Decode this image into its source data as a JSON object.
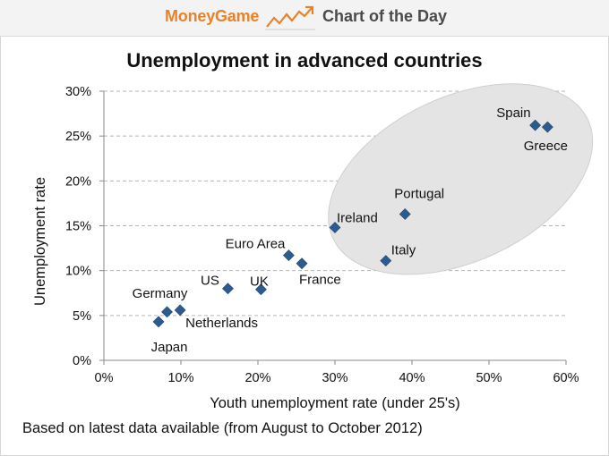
{
  "banner": {
    "brand": "MoneyGame",
    "icon": "rising-trend-chart-icon",
    "title": "Chart of the Day",
    "brand_color": "#e8822a"
  },
  "chart_data": {
    "type": "scatter",
    "title": "Unemployment in advanced countries",
    "xlabel": "Youth unemployment rate (under 25's)",
    "ylabel": "Unemployment rate",
    "xlim": [
      0,
      60
    ],
    "ylim": [
      0,
      30
    ],
    "xticks": [
      "0%",
      "10%",
      "20%",
      "30%",
      "40%",
      "50%",
      "60%"
    ],
    "yticks": [
      "0%",
      "5%",
      "10%",
      "15%",
      "20%",
      "25%",
      "30%"
    ],
    "grid": "horizontal dashed",
    "marker": "diamond",
    "marker_color": "#2e5b8e",
    "highlight_color": "#e4e4e4",
    "points": [
      {
        "label": "Japan",
        "x": 7.1,
        "y": 4.3
      },
      {
        "label": "Germany",
        "x": 8.2,
        "y": 5.4
      },
      {
        "label": "Netherlands",
        "x": 9.9,
        "y": 5.6
      },
      {
        "label": "US",
        "x": 16.1,
        "y": 8.0
      },
      {
        "label": "UK",
        "x": 20.4,
        "y": 7.9
      },
      {
        "label": "Euro Area",
        "x": 24.0,
        "y": 11.7
      },
      {
        "label": "France",
        "x": 25.7,
        "y": 10.8
      },
      {
        "label": "Ireland",
        "x": 30.0,
        "y": 14.8
      },
      {
        "label": "Italy",
        "x": 36.6,
        "y": 11.1
      },
      {
        "label": "Portugal",
        "x": 39.1,
        "y": 16.3
      },
      {
        "label": "Spain",
        "x": 56.0,
        "y": 26.2
      },
      {
        "label": "Greece",
        "x": 57.6,
        "y": 26.0
      }
    ]
  },
  "footnote": "Based on latest data available (from August to October 2012)"
}
